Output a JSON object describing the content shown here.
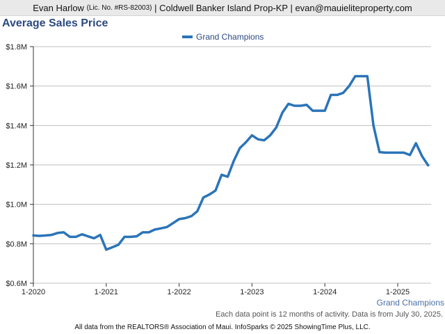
{
  "header": {
    "agent_name": "Evan Harlow",
    "license": "(Lic. No. #RS-82003)",
    "company_email": "| Coldwell Banker Island Prop-KP | evan@mauieliteproperty.com"
  },
  "title": "Average Sales Price",
  "footer": {
    "note": "Each data point is 12 months of activity. Data is from July 30, 2025.",
    "source": "All data from the REALTORS® Association of Maui. InfoSparks © 2025 ShowingTime Plus, LLC."
  },
  "chart_data": {
    "type": "line",
    "title": "Average Sales Price",
    "xlabel": "",
    "ylabel": "",
    "ylim": [
      600000,
      1800000
    ],
    "y_ticks": [
      {
        "value": 600000,
        "label": "$0.6M"
      },
      {
        "value": 800000,
        "label": "$0.8M"
      },
      {
        "value": 1000000,
        "label": "$1.0M"
      },
      {
        "value": 1200000,
        "label": "$1.2M"
      },
      {
        "value": 1400000,
        "label": "$1.4M"
      },
      {
        "value": 1600000,
        "label": "$1.6M"
      },
      {
        "value": 1800000,
        "label": "$1.8M"
      }
    ],
    "x_ticks": [
      "1-2020",
      "1-2021",
      "1-2022",
      "1-2023",
      "1-2024",
      "1-2025"
    ],
    "grid": true,
    "legend_position": "top-center",
    "series_label": "Grand Champions",
    "series": [
      {
        "name": "Grand Champions",
        "color": "#2b74b8",
        "x": [
          "1-2020",
          "2-2020",
          "3-2020",
          "4-2020",
          "5-2020",
          "6-2020",
          "7-2020",
          "8-2020",
          "9-2020",
          "10-2020",
          "11-2020",
          "12-2020",
          "1-2021",
          "2-2021",
          "3-2021",
          "4-2021",
          "5-2021",
          "6-2021",
          "7-2021",
          "8-2021",
          "9-2021",
          "10-2021",
          "11-2021",
          "12-2021",
          "1-2022",
          "2-2022",
          "3-2022",
          "4-2022",
          "5-2022",
          "6-2022",
          "7-2022",
          "8-2022",
          "9-2022",
          "10-2022",
          "11-2022",
          "12-2022",
          "1-2023",
          "2-2023",
          "3-2023",
          "4-2023",
          "5-2023",
          "6-2023",
          "7-2023",
          "8-2023",
          "9-2023",
          "10-2023",
          "11-2023",
          "12-2023",
          "1-2024",
          "2-2024",
          "3-2024",
          "4-2024",
          "5-2024",
          "6-2024",
          "7-2024",
          "8-2024",
          "9-2024",
          "10-2024",
          "11-2024",
          "12-2024",
          "1-2025",
          "2-2025",
          "3-2025",
          "4-2025",
          "5-2025",
          "6-2025"
        ],
        "values": [
          842000,
          840000,
          842000,
          845000,
          855000,
          858000,
          835000,
          835000,
          848000,
          838000,
          828000,
          845000,
          770000,
          782000,
          795000,
          835000,
          835000,
          838000,
          858000,
          858000,
          872000,
          878000,
          885000,
          905000,
          925000,
          930000,
          940000,
          965000,
          1035000,
          1050000,
          1070000,
          1150000,
          1140000,
          1220000,
          1285000,
          1315000,
          1350000,
          1330000,
          1325000,
          1350000,
          1390000,
          1465000,
          1510000,
          1500000,
          1500000,
          1505000,
          1475000,
          1475000,
          1475000,
          1555000,
          1555000,
          1565000,
          1600000,
          1650000,
          1650000,
          1650000,
          1400000,
          1265000,
          1262000,
          1262000,
          1262000,
          1262000,
          1250000,
          1310000,
          1245000,
          1198000
        ]
      }
    ]
  }
}
